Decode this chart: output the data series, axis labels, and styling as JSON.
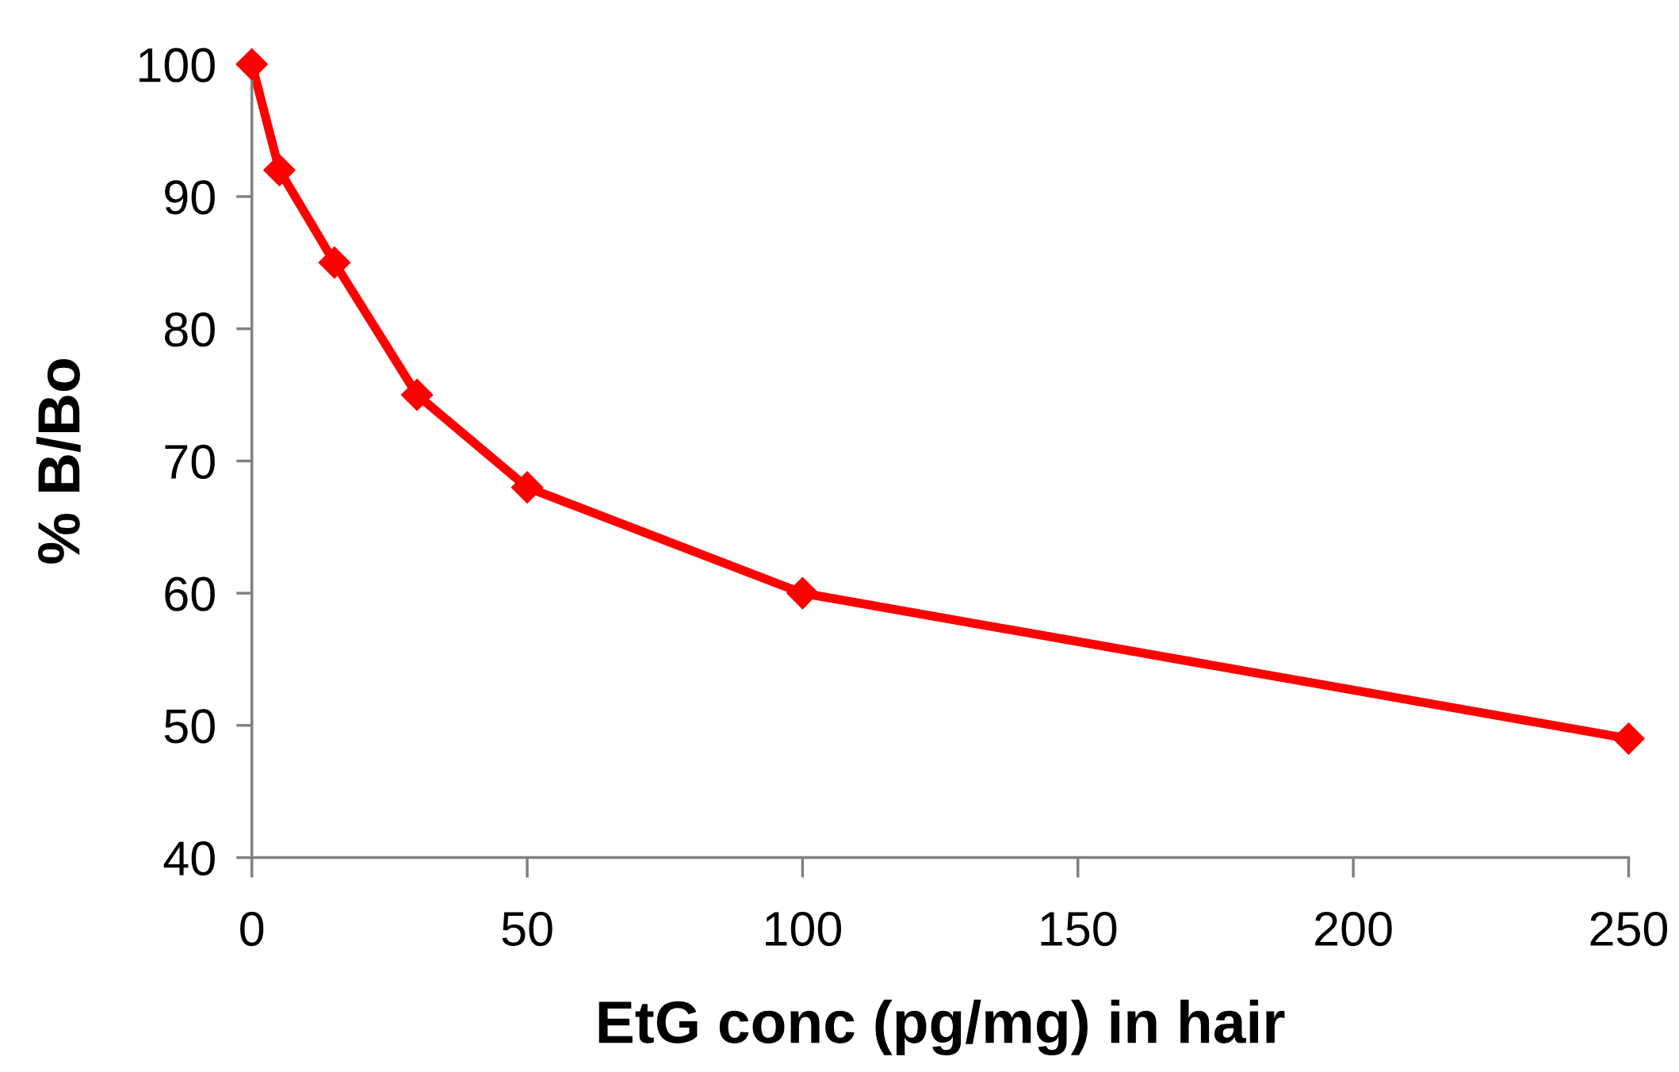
{
  "chart_data": {
    "type": "line",
    "xlabel": "EtG conc (pg/mg) in hair",
    "ylabel": "% B/Bo",
    "x": [
      0,
      5,
      15,
      30,
      50,
      100,
      250
    ],
    "series": [
      {
        "color": "#ff0000",
        "values": [
          100,
          92,
          85,
          75,
          68,
          60,
          49
        ]
      }
    ],
    "xlim": [
      0,
      250
    ],
    "xticks": [
      0,
      50,
      100,
      150,
      200,
      250
    ],
    "ylim": [
      40,
      100
    ],
    "yticks": [
      40,
      50,
      60,
      70,
      80,
      90,
      100
    ],
    "grid": false,
    "legend": false,
    "marker": "diamond",
    "line_style": "solid"
  }
}
